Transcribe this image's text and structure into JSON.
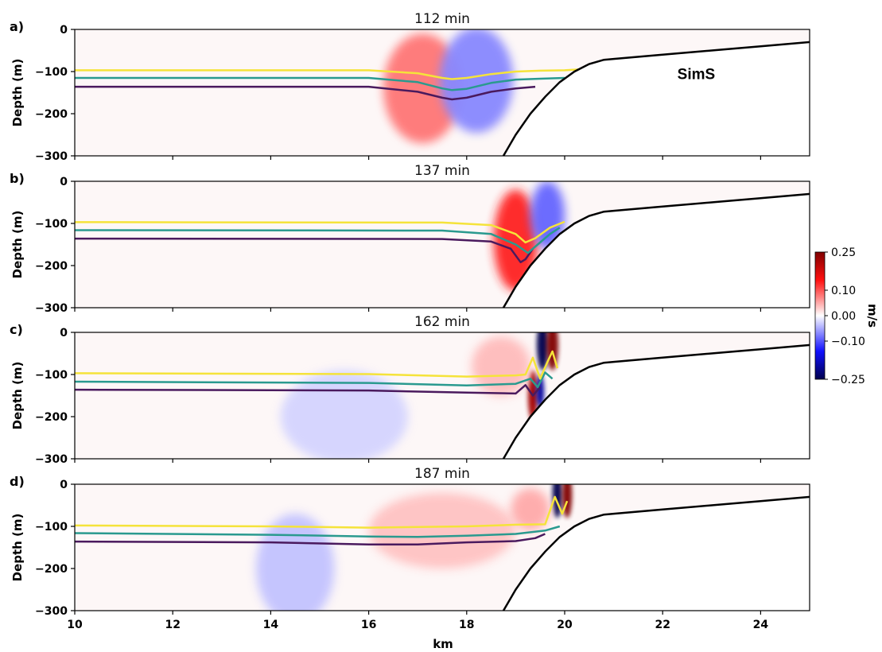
{
  "chart_data": {
    "type": "heatmap",
    "xlabel": "km",
    "ylabel": "Depth (m)",
    "xlim": [
      10,
      25
    ],
    "ylim": [
      -300,
      0
    ],
    "x_ticks": [
      10,
      12,
      14,
      16,
      18,
      20,
      22,
      24
    ],
    "y_ticks": [
      0,
      -100,
      -200,
      -300
    ],
    "annotation": "SimS",
    "colorbar": {
      "label": "m/s",
      "range": [
        -0.25,
        0.25
      ],
      "ticks": [
        0.25,
        0.1,
        0.0,
        -0.1,
        -0.25
      ],
      "tick_labels": [
        "0.25",
        "0.10",
        "0.00",
        "−0.10",
        "−0.25"
      ],
      "colormap": "seismic",
      "low_color": "#00004d",
      "mid_color": "#ffffff",
      "high_color": "#800000"
    },
    "line_colors": {
      "upper": "#f5e33a",
      "middle": "#2a9a8f",
      "lower": "#4a1a5e",
      "bathymetry": "#000000"
    },
    "bathymetry": {
      "x": [
        18.75,
        19.0,
        19.3,
        19.6,
        19.9,
        20.2,
        20.5,
        20.8,
        21.0,
        22.0,
        23.0,
        24.0,
        25.0
      ],
      "y": [
        -300,
        -250,
        -200,
        -160,
        -125,
        -100,
        -82,
        -72,
        -70,
        -60,
        -50,
        -40,
        -30
      ]
    },
    "panels": [
      {
        "label": "a)",
        "title": "112 min",
        "isopycnals": {
          "upper": {
            "x": [
              10,
              16.0,
              17.0,
              17.5,
              17.7,
              18.0,
              18.5,
              19.0,
              19.5,
              20.0,
              20.3
            ],
            "y": [
              -97,
              -97,
              -104,
              -115,
              -118,
              -115,
              -106,
              -100,
              -98,
              -97,
              -95
            ]
          },
          "middle": {
            "x": [
              10,
              16.0,
              17.0,
              17.5,
              17.7,
              18.0,
              18.5,
              19.0,
              19.5,
              20.0
            ],
            "y": [
              -115,
              -115,
              -125,
              -140,
              -144,
              -141,
              -127,
              -119,
              -117,
              -115
            ]
          },
          "lower": {
            "x": [
              10,
              16.0,
              17.0,
              17.5,
              17.7,
              18.0,
              18.5,
              19.0,
              19.4
            ],
            "y": [
              -136,
              -136,
              -148,
              -162,
              -166,
              -162,
              -148,
              -140,
              -136
            ]
          }
        },
        "velocity_patches": [
          {
            "x": 17.1,
            "y": -140,
            "rx": 0.8,
            "ry": 130,
            "value": 0.08
          },
          {
            "x": 18.2,
            "y": -120,
            "rx": 0.75,
            "ry": 125,
            "value": -0.07
          }
        ]
      },
      {
        "label": "b)",
        "title": "137 min",
        "isopycnals": {
          "upper": {
            "x": [
              10,
              17.5,
              18.5,
              19.0,
              19.2,
              19.4,
              19.7,
              20.0
            ],
            "y": [
              -97,
              -98,
              -104,
              -125,
              -145,
              -135,
              -110,
              -96
            ]
          },
          "middle": {
            "x": [
              10,
              17.5,
              18.5,
              19.0,
              19.25,
              19.45,
              19.7,
              19.9
            ],
            "y": [
              -116,
              -117,
              -125,
              -150,
              -170,
              -150,
              -125,
              -110
            ]
          },
          "lower": {
            "x": [
              10,
              17.5,
              18.5,
              18.9,
              19.1,
              19.2,
              19.35
            ],
            "y": [
              -136,
              -137,
              -143,
              -160,
              -192,
              -185,
              -160
            ]
          }
        },
        "velocity_patches": [
          {
            "x": 19.0,
            "y": -140,
            "rx": 0.45,
            "ry": 120,
            "value": 0.13
          },
          {
            "x": 19.65,
            "y": -80,
            "rx": 0.35,
            "ry": 80,
            "value": -0.09
          }
        ]
      },
      {
        "label": "c)",
        "title": "162 min",
        "isopycnals": {
          "upper": {
            "x": [
              10,
              16.0,
              18.0,
              19.0,
              19.2,
              19.35,
              19.5,
              19.65,
              19.75,
              19.85
            ],
            "y": [
              -97,
              -99,
              -105,
              -102,
              -100,
              -60,
              -110,
              -70,
              -45,
              -85
            ]
          },
          "middle": {
            "x": [
              10,
              16.0,
              18.0,
              19.0,
              19.3,
              19.45,
              19.6,
              19.75
            ],
            "y": [
              -117,
              -120,
              -126,
              -122,
              -110,
              -130,
              -95,
              -110
            ]
          },
          "lower": {
            "x": [
              10,
              16.0,
              18.0,
              19.0,
              19.2,
              19.35,
              19.5
            ],
            "y": [
              -136,
              -138,
              -143,
              -145,
              -125,
              -150,
              -130
            ]
          }
        },
        "velocity_patches": [
          {
            "x": 19.55,
            "y": -30,
            "rx": 0.12,
            "ry": 60,
            "value": -0.25
          },
          {
            "x": 19.75,
            "y": -30,
            "rx": 0.12,
            "ry": 60,
            "value": 0.25
          },
          {
            "x": 19.35,
            "y": -150,
            "rx": 0.1,
            "ry": 60,
            "value": 0.22
          },
          {
            "x": 19.5,
            "y": -140,
            "rx": 0.08,
            "ry": 40,
            "value": -0.2
          },
          {
            "x": 18.7,
            "y": -80,
            "rx": 0.6,
            "ry": 70,
            "value": 0.04
          },
          {
            "x": 15.5,
            "y": -200,
            "rx": 1.3,
            "ry": 110,
            "value": -0.025
          }
        ]
      },
      {
        "label": "d)",
        "title": "187 min",
        "isopycnals": {
          "upper": {
            "x": [
              10,
              14.0,
              16.0,
              18.0,
              19.0,
              19.6,
              19.8,
              19.95,
              20.05
            ],
            "y": [
              -98,
              -100,
              -103,
              -100,
              -96,
              -95,
              -30,
              -70,
              -40
            ]
          },
          "middle": {
            "x": [
              10,
              14.0,
              16.0,
              17.0,
              18.0,
              19.0,
              19.6,
              19.9
            ],
            "y": [
              -116,
              -120,
              -124,
              -125,
              -122,
              -118,
              -110,
              -100
            ]
          },
          "lower": {
            "x": [
              10,
              14.0,
              16.0,
              17.0,
              18.0,
              19.0,
              19.4,
              19.6
            ],
            "y": [
              -136,
              -138,
              -143,
              -143,
              -138,
              -135,
              -128,
              -118
            ]
          }
        },
        "velocity_patches": [
          {
            "x": 19.85,
            "y": -25,
            "rx": 0.1,
            "ry": 55,
            "value": -0.25
          },
          {
            "x": 20.05,
            "y": -25,
            "rx": 0.1,
            "ry": 55,
            "value": 0.25
          },
          {
            "x": 14.5,
            "y": -200,
            "rx": 0.8,
            "ry": 130,
            "value": -0.035
          },
          {
            "x": 17.5,
            "y": -110,
            "rx": 1.5,
            "ry": 90,
            "value": 0.035
          },
          {
            "x": 19.3,
            "y": -60,
            "rx": 0.4,
            "ry": 50,
            "value": 0.05
          }
        ]
      }
    ]
  }
}
